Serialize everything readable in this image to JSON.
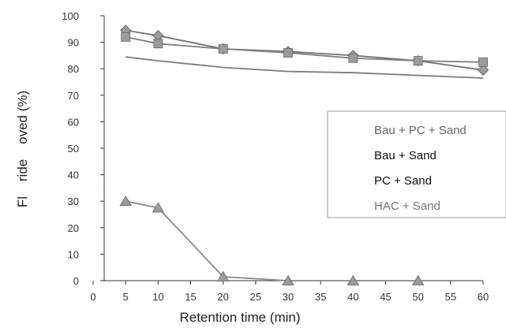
{
  "chart_data": {
    "type": "line",
    "xlabel": "Retention time (min)",
    "ylabel": "Fl    ride    oved (%)",
    "xlim": [
      0,
      60
    ],
    "ylim": [
      0,
      100
    ],
    "xticks": [
      0,
      5,
      10,
      15,
      20,
      25,
      30,
      35,
      40,
      45,
      50,
      55,
      60
    ],
    "yticks": [
      0,
      10,
      20,
      30,
      40,
      50,
      60,
      70,
      80,
      90,
      100
    ],
    "legend_position": "right",
    "grid": false,
    "series": [
      {
        "name": "Bau + PC + Sand",
        "color": "#7a7a7a",
        "text_color": "#666666",
        "marker": "none",
        "x": [
          5,
          10,
          20,
          30,
          40,
          50,
          60
        ],
        "y": [
          84.5,
          83,
          80.5,
          79,
          78.5,
          77.5,
          76.5
        ]
      },
      {
        "name": "Bau + Sand",
        "color": "#707070",
        "text_color": "#111111",
        "marker": "diamond",
        "x": [
          5,
          10,
          20,
          30,
          40,
          50,
          60
        ],
        "y": [
          94.5,
          92.5,
          87.5,
          86.5,
          85,
          83,
          79.5
        ]
      },
      {
        "name": "PC + Sand",
        "color": "#808080",
        "text_color": "#111111",
        "marker": "square",
        "x": [
          5,
          10,
          20,
          30,
          40,
          50,
          60
        ],
        "y": [
          92,
          89.5,
          87.5,
          86,
          84,
          83,
          82.5
        ]
      },
      {
        "name": "HAC + Sand",
        "color": "#8a8a8a",
        "text_color": "#777777",
        "marker": "triangle",
        "x": [
          5,
          10,
          20,
          30,
          40,
          50
        ],
        "y": [
          30,
          27.5,
          1.5,
          0,
          0,
          0
        ]
      }
    ]
  }
}
